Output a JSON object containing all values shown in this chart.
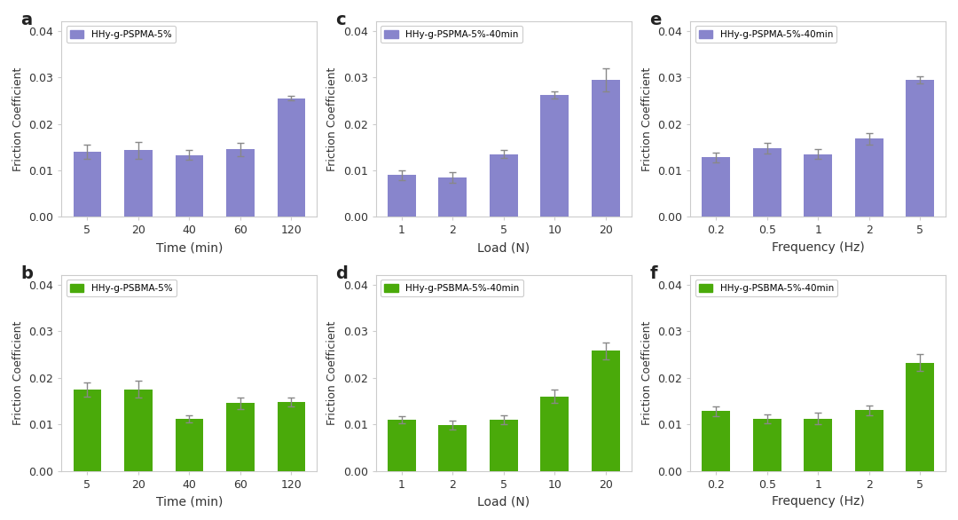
{
  "subplots": {
    "a": {
      "label": "a",
      "legend": "HHy-g-PSPMA-5%",
      "color": "#8885cc",
      "xlabel": "Time (min)",
      "xtick_labels": [
        "5",
        "20",
        "40",
        "60",
        "120"
      ],
      "values": [
        0.014,
        0.0143,
        0.0133,
        0.0145,
        0.0255
      ],
      "errors": [
        0.0015,
        0.0018,
        0.001,
        0.0015,
        0.0005
      ]
    },
    "b": {
      "label": "b",
      "legend": "HHy-g-PSBMA-5%",
      "color": "#4aaa0a",
      "xlabel": "Time (min)",
      "xtick_labels": [
        "5",
        "20",
        "40",
        "60",
        "120"
      ],
      "values": [
        0.0175,
        0.0175,
        0.0112,
        0.0145,
        0.0148
      ],
      "errors": [
        0.0015,
        0.0018,
        0.0008,
        0.0012,
        0.001
      ]
    },
    "c": {
      "label": "c",
      "legend": "HHy-g-PSPMA-5%-40min",
      "color": "#8885cc",
      "xlabel": "Load (N)",
      "xtick_labels": [
        "1",
        "2",
        "5",
        "10",
        "20"
      ],
      "values": [
        0.009,
        0.0085,
        0.0135,
        0.0262,
        0.0295
      ],
      "errors": [
        0.001,
        0.0012,
        0.0008,
        0.0008,
        0.0025
      ]
    },
    "d": {
      "label": "d",
      "legend": "HHy-g-PSBMA-5%-40min",
      "color": "#4aaa0a",
      "xlabel": "Load (N)",
      "xtick_labels": [
        "1",
        "2",
        "5",
        "10",
        "20"
      ],
      "values": [
        0.011,
        0.0098,
        0.011,
        0.016,
        0.0258
      ],
      "errors": [
        0.0008,
        0.001,
        0.001,
        0.0015,
        0.0018
      ]
    },
    "e": {
      "label": "e",
      "legend": "HHy-g-PSPMA-5%-40min",
      "color": "#8885cc",
      "xlabel": "Frequency (Hz)",
      "xtick_labels": [
        "0.2",
        "0.5",
        "1",
        "2",
        "5"
      ],
      "values": [
        0.0128,
        0.0148,
        0.0135,
        0.0168,
        0.0295
      ],
      "errors": [
        0.001,
        0.0012,
        0.001,
        0.0012,
        0.0008
      ]
    },
    "f": {
      "label": "f",
      "legend": "HHy-g-PSBMA-5%-40min",
      "color": "#4aaa0a",
      "xlabel": "Frequency (Hz)",
      "xtick_labels": [
        "0.2",
        "0.5",
        "1",
        "2",
        "5"
      ],
      "values": [
        0.0128,
        0.0112,
        0.0112,
        0.013,
        0.0232
      ],
      "errors": [
        0.001,
        0.001,
        0.0012,
        0.001,
        0.0018
      ]
    }
  },
  "ylabel": "Friction Coefficient",
  "ylim": [
    0.0,
    0.042
  ],
  "yticks": [
    0.0,
    0.01,
    0.02,
    0.03,
    0.04
  ],
  "bar_width": 0.55,
  "background_color": "#ffffff",
  "plot_bg_color": "#ffffff"
}
